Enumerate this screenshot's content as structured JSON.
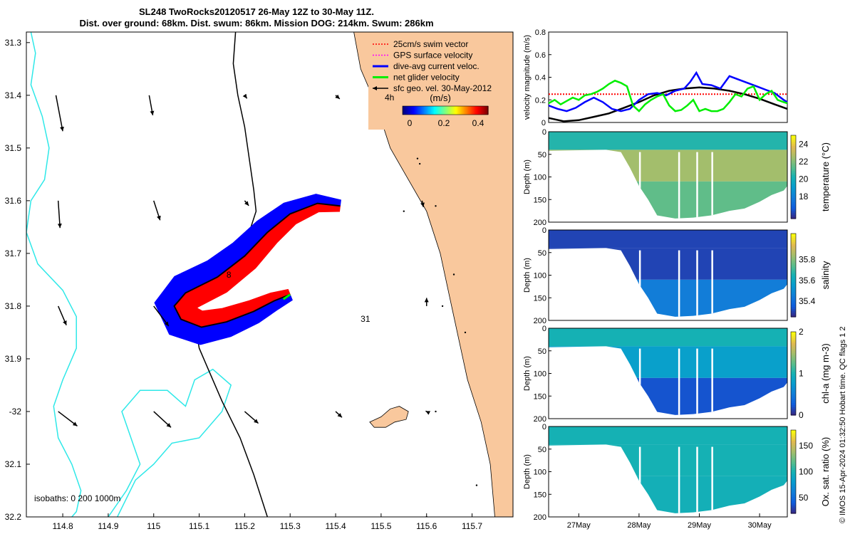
{
  "title": {
    "line1": "SL248 TwoRocks20120517 26-May 12Z to 30-May 11Z.",
    "line2": "Dist. over ground: 68km. Dist. swum: 86km. Mission DOG: 214km. Swum: 286km"
  },
  "credit": "© IMOS 15-Apr-2024 01:32:50 Hobart time. QC flags 1  2",
  "colors": {
    "land": "#f9c89d",
    "ocean": "#ffffff",
    "isobath_shallow": "#2ee8e8",
    "isobath_deep": "#000000",
    "swim": "#ff0000",
    "current": "#0000ff",
    "gps": "#ff00ff",
    "net": "#00ee00",
    "geo": "#000000"
  },
  "chart_data": [
    {
      "type": "map",
      "name": "track-map",
      "xlim": [
        114.72,
        115.79
      ],
      "ylim": [
        -32.2,
        -31.28
      ],
      "xticks": [
        114.8,
        114.9,
        115.0,
        115.1,
        115.2,
        115.3,
        115.4,
        115.5,
        115.6,
        115.7
      ],
      "xtick_labels": [
        "114.8",
        "114.9",
        "115",
        "115.1",
        "115.2",
        "115.3",
        "115.4",
        "115.5",
        "115.6",
        "115.7"
      ],
      "yticks": [
        -31.3,
        -31.4,
        -31.5,
        -31.6,
        -31.7,
        -31.8,
        -31.9,
        -32.0,
        -32.1,
        -32.2
      ],
      "ytick_labels": [
        "31.3",
        "31.4",
        "31.5",
        "31.6",
        "31.7",
        "31.8",
        "31.9",
        "-32",
        "32.1",
        "32.2"
      ],
      "legend": {
        "position": "top-right",
        "items": [
          {
            "label": "25cm/s swim vector",
            "color": "#ff0000",
            "style": "dotted"
          },
          {
            "label": "GPS surface velocity",
            "color": "#ff00ff",
            "style": "dotted"
          },
          {
            "label": "dive-avg current veloc.",
            "color": "#0000ff",
            "style": "solid"
          },
          {
            "label": "net glider velocity",
            "color": "#00ee00",
            "style": "solid"
          },
          {
            "label": "sfc geo. vel. 30-May-2012",
            "color": "#000000",
            "style": "arrow"
          }
        ],
        "arrow_annotation": "4h",
        "colorbar_label": "(m/s)",
        "colorbar_ticks": [
          "0",
          "0.2",
          "0.4"
        ],
        "colorbar_range": [
          0,
          0.5
        ]
      },
      "annotations": [
        {
          "text": "31",
          "lon": 115.455,
          "lat": -31.83
        },
        {
          "text": "8",
          "lon": 115.16,
          "lat": -31.746
        }
      ],
      "isobath_note": "isobaths: 0   200  1000m",
      "glider_track": [
        [
          115.41,
          -31.61
        ],
        [
          115.36,
          -31.605
        ],
        [
          115.3,
          -31.625
        ],
        [
          115.25,
          -31.66
        ],
        [
          115.2,
          -31.705
        ],
        [
          115.14,
          -31.745
        ],
        [
          115.07,
          -31.775
        ],
        [
          115.045,
          -31.8
        ],
        [
          115.06,
          -31.825
        ],
        [
          115.105,
          -31.84
        ],
        [
          115.16,
          -31.83
        ],
        [
          115.22,
          -31.81
        ],
        [
          115.265,
          -31.79
        ],
        [
          115.3,
          -31.778
        ]
      ],
      "geo_vectors": [
        {
          "lon": 114.785,
          "lat": -31.4,
          "u": 0.015,
          "v": -0.079
        },
        {
          "lon": 114.79,
          "lat": -31.6,
          "u": 0.004,
          "v": -0.06
        },
        {
          "lon": 114.79,
          "lat": -31.8,
          "u": 0.018,
          "v": -0.042
        },
        {
          "lon": 114.79,
          "lat": -32.0,
          "u": 0.042,
          "v": -0.032
        },
        {
          "lon": 114.99,
          "lat": -31.4,
          "u": 0.008,
          "v": -0.044
        },
        {
          "lon": 115.0,
          "lat": -31.6,
          "u": 0.014,
          "v": -0.043
        },
        {
          "lon": 115.0,
          "lat": -31.8,
          "u": 0.033,
          "v": -0.044
        },
        {
          "lon": 115.0,
          "lat": -32.0,
          "u": 0.038,
          "v": -0.035
        },
        {
          "lon": 115.2,
          "lat": -31.4,
          "u": 0.005,
          "v": -0.007
        },
        {
          "lon": 115.2,
          "lat": -31.6,
          "u": 0.009,
          "v": -0.011
        },
        {
          "lon": 115.2,
          "lat": -32.0,
          "u": 0.03,
          "v": -0.026
        },
        {
          "lon": 115.4,
          "lat": -31.4,
          "u": 0.009,
          "v": -0.008
        },
        {
          "lon": 115.59,
          "lat": -31.6,
          "u": 0.003,
          "v": -0.014
        },
        {
          "lon": 115.6,
          "lat": -31.8,
          "u": 0.0,
          "v": 0.018
        },
        {
          "lon": 115.4,
          "lat": -32.0,
          "u": 0.014,
          "v": -0.013
        },
        {
          "lon": 115.6,
          "lat": -32.0,
          "u": -0.002,
          "v": 0.001
        }
      ]
    },
    {
      "type": "line",
      "name": "velocity-magnitude",
      "ylabel": "velocity magnitude (m/s)",
      "ylim": [
        0,
        0.8
      ],
      "yticks": [
        0,
        0.2,
        0.4,
        0.6,
        0.8
      ],
      "ytick_labels": [
        "0",
        "0.2",
        "0.4",
        "0.6",
        "0.8"
      ],
      "xlim": [
        26.5,
        30.46
      ],
      "series": [
        {
          "name": "25cm/s swim vector",
          "color": "#ff0000",
          "style": "dotted",
          "x": [
            26.5,
            30.46
          ],
          "y": [
            0.25,
            0.25
          ]
        },
        {
          "name": "sfc geo. vel.",
          "color": "#000000",
          "style": "solid",
          "x": [
            26.5,
            26.75,
            27.0,
            27.25,
            27.5,
            27.75,
            28.0,
            28.25,
            28.5,
            28.75,
            29.0,
            29.25,
            29.5,
            29.75,
            30.0,
            30.25,
            30.46
          ],
          "y": [
            0.04,
            0.01,
            0.02,
            0.05,
            0.08,
            0.13,
            0.18,
            0.24,
            0.28,
            0.3,
            0.31,
            0.3,
            0.28,
            0.25,
            0.21,
            0.16,
            0.12
          ]
        },
        {
          "name": "dive-avg current veloc.",
          "color": "#0000ff",
          "style": "solid",
          "x": [
            26.5,
            26.65,
            26.8,
            26.95,
            27.1,
            27.25,
            27.4,
            27.55,
            27.7,
            27.85,
            28.0,
            28.15,
            28.3,
            28.45,
            28.6,
            28.75,
            28.85,
            28.95,
            29.05,
            29.2,
            29.35,
            29.5,
            29.65,
            29.8,
            29.95,
            30.1,
            30.25,
            30.4,
            30.46
          ],
          "y": [
            0.15,
            0.12,
            0.1,
            0.13,
            0.18,
            0.22,
            0.18,
            0.12,
            0.1,
            0.12,
            0.2,
            0.25,
            0.26,
            0.24,
            0.28,
            0.3,
            0.36,
            0.44,
            0.34,
            0.33,
            0.3,
            0.41,
            0.38,
            0.35,
            0.32,
            0.29,
            0.26,
            0.2,
            0.18
          ]
        },
        {
          "name": "net glider velocity",
          "color": "#00ee00",
          "style": "solid",
          "x": [
            26.5,
            26.6,
            26.7,
            26.8,
            26.9,
            27.0,
            27.1,
            27.2,
            27.3,
            27.4,
            27.5,
            27.6,
            27.7,
            27.8,
            27.9,
            28.0,
            28.1,
            28.2,
            28.3,
            28.4,
            28.5,
            28.6,
            28.7,
            28.8,
            28.9,
            29.0,
            29.1,
            29.2,
            29.3,
            29.4,
            29.5,
            29.6,
            29.7,
            29.8,
            29.9,
            30.0,
            30.1,
            30.2,
            30.3,
            30.4,
            30.46
          ],
          "y": [
            0.17,
            0.2,
            0.16,
            0.19,
            0.22,
            0.2,
            0.24,
            0.25,
            0.27,
            0.3,
            0.34,
            0.37,
            0.35,
            0.32,
            0.15,
            0.1,
            0.16,
            0.2,
            0.23,
            0.25,
            0.15,
            0.1,
            0.11,
            0.15,
            0.2,
            0.1,
            0.12,
            0.1,
            0.1,
            0.12,
            0.18,
            0.25,
            0.23,
            0.3,
            0.32,
            0.2,
            0.25,
            0.28,
            0.2,
            0.18,
            0.17
          ]
        }
      ]
    },
    {
      "type": "heatmap",
      "name": "temperature-section",
      "ylabel": "Depth (m)",
      "cbar_label": "temperature (°C)",
      "yticks": [
        0,
        50,
        100,
        150,
        200
      ],
      "ytick_labels": [
        "0",
        "50",
        "100",
        "150",
        "200"
      ],
      "clim": [
        15.5,
        25
      ],
      "cbar_ticks": [
        18,
        20,
        22,
        24
      ],
      "cbar_tick_labels": [
        "18",
        "20",
        "22",
        "24"
      ],
      "colormap": "parula",
      "surface_value": 20.5,
      "mid_value": 22.6,
      "deep_value": 21.5
    },
    {
      "type": "heatmap",
      "name": "salinity-section",
      "ylabel": "Depth (m)",
      "cbar_label": "salinity",
      "yticks": [
        0,
        50,
        100,
        150,
        200
      ],
      "ytick_labels": [
        "0",
        "50",
        "100",
        "150",
        "200"
      ],
      "clim": [
        35.25,
        36.05
      ],
      "cbar_ticks": [
        35.4,
        35.6,
        35.8
      ],
      "cbar_tick_labels": [
        "35.4",
        "35.6",
        "35.8"
      ],
      "colormap": "parula",
      "surface_value": 35.3,
      "mid_value": 35.3,
      "deep_value": 35.45
    },
    {
      "type": "heatmap",
      "name": "chla-section",
      "ylabel": "Depth (m)",
      "cbar_label": "chl-a (mg m-3)",
      "yticks": [
        0,
        50,
        100,
        150,
        200
      ],
      "ytick_labels": [
        "0",
        "50",
        "100",
        "150",
        "200"
      ],
      "clim": [
        0,
        2
      ],
      "cbar_ticks": [
        0,
        1,
        2
      ],
      "cbar_tick_labels": [
        "0",
        "1",
        "2"
      ],
      "colormap": "parula",
      "surface_value": 1.0,
      "mid_value": 0.8,
      "deep_value": 0.2
    },
    {
      "type": "heatmap",
      "name": "oxygen-section",
      "ylabel": "Depth (m)",
      "cbar_label": "Ox. sat. ratio (%)",
      "yticks": [
        0,
        50,
        100,
        150,
        200
      ],
      "ytick_labels": [
        "0",
        "50",
        "100",
        "150",
        "200"
      ],
      "clim": [
        20,
        180
      ],
      "cbar_ticks": [
        50,
        100,
        150
      ],
      "cbar_tick_labels": [
        "50",
        "100",
        "150"
      ],
      "colormap": "parula",
      "surface_value": 100,
      "mid_value": 100,
      "deep_value": 98
    },
    {
      "type": "axis",
      "name": "time-axis",
      "xlim": [
        26.5,
        30.46
      ],
      "xticks": [
        27,
        28,
        29,
        30
      ],
      "xtick_labels": [
        "27May",
        "28May",
        "29May",
        "30May"
      ]
    }
  ]
}
